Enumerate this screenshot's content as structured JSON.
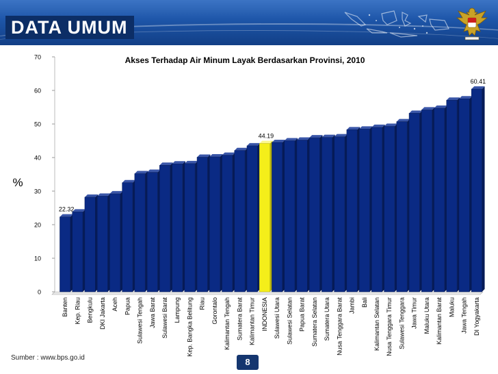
{
  "slide": {
    "title": "DATA UMUM",
    "source": "Sumber : www.bps.go.id",
    "page_number": "8",
    "colors": {
      "header": "#1d55a8",
      "bar": "#0a2a84",
      "bar_highlight": "#f4ee1a"
    },
    "icons": [
      "indonesia-map-icon",
      "garuda-emblem-icon"
    ]
  },
  "chart_data": {
    "type": "bar",
    "title": "Akses Terhadap Air Minum Layak Berdasarkan Provinsi, 2010",
    "ylabel": "%",
    "xlabel": "",
    "ylim": [
      0,
      70
    ],
    "yticks": [
      0,
      10,
      20,
      30,
      40,
      50,
      60,
      70
    ],
    "grid": false,
    "legend": "none",
    "highlight_category": "INDONESIA",
    "categories": [
      "Banten",
      "Kep. Riau",
      "Bengkulu",
      "DKI Jakarta",
      "Aceh",
      "Papua",
      "Sulawesi Tengah",
      "Jawa Barat",
      "Sulawesi Barat",
      "Lampung",
      "Kep. Bangka Belitung",
      "Riau",
      "Gorontalo",
      "Kalimantan Tengah",
      "Sumatera Barat",
      "Kalimantan Timur",
      "INDONESIA",
      "Sulawesi Utara",
      "Sulawesi Selatan",
      "Papua Barat",
      "Sumatera Selatan",
      "Sumatera Utara",
      "Nusa Tenggara Barat",
      "Jambi",
      "Bali",
      "Kalimantan Selatan",
      "Nusa Tenggara Timur",
      "Sulawesi Tenggara",
      "Jawa Timur",
      "Maluku Utara",
      "Kalimantan Barat",
      "Maluku",
      "Jawa Tengah",
      "DI Yogyakarta"
    ],
    "values": [
      22.32,
      23.8,
      28.2,
      28.5,
      29.2,
      32.5,
      35.2,
      35.6,
      37.7,
      38.1,
      38.2,
      40.1,
      40.2,
      40.7,
      42.1,
      43.5,
      44.19,
      44.5,
      45.0,
      45.2,
      45.9,
      46.0,
      46.2,
      48.3,
      48.5,
      49.0,
      49.3,
      50.7,
      53.2,
      54.2,
      54.7,
      57.1,
      57.5,
      60.41
    ],
    "data_labels": {
      "Banten": "22.32",
      "INDONESIA": "44.19",
      "DI Yogyakarta": "60.41"
    }
  }
}
